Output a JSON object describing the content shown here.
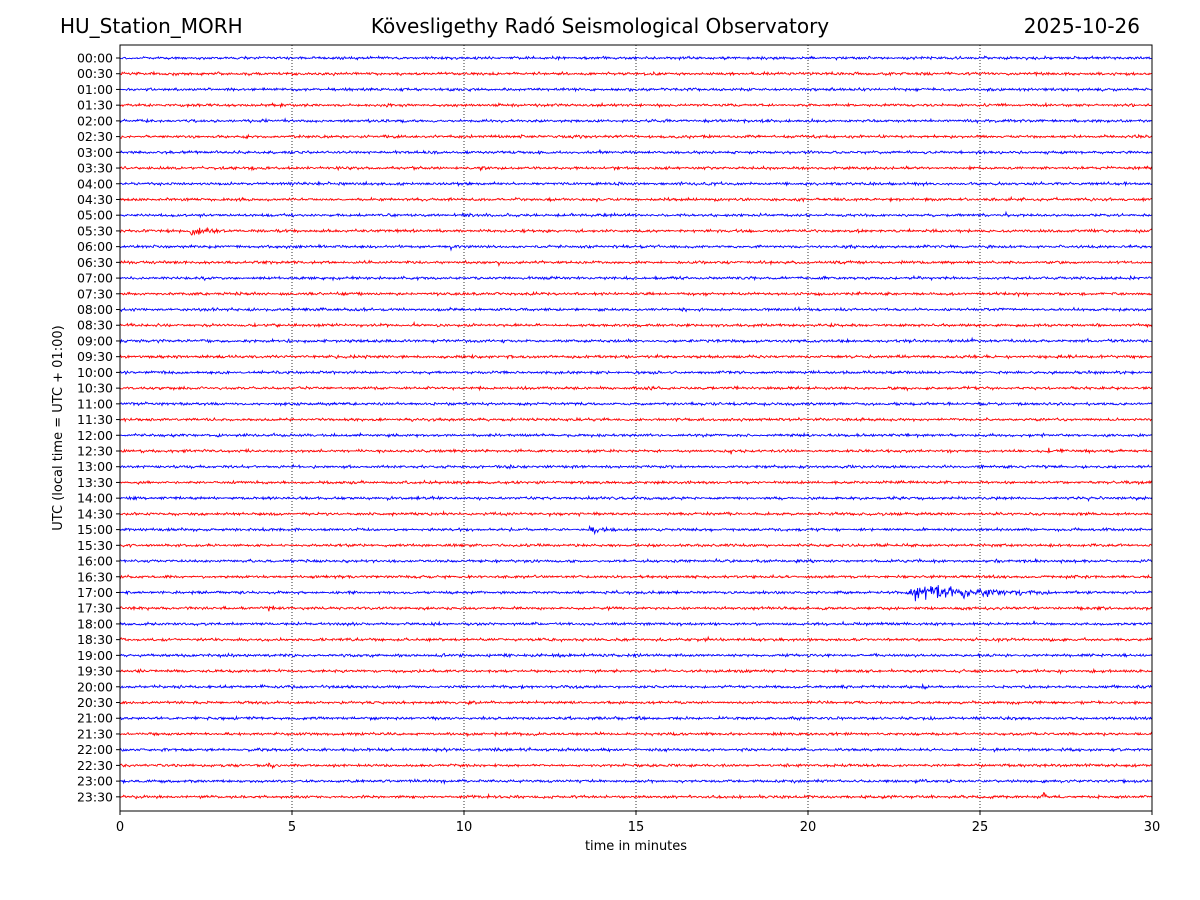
{
  "header": {
    "station": "HU_Station_MORH",
    "observatory": "Kövesligethy Radó Seismological Observatory",
    "date": "2025-10-26"
  },
  "chart_data": {
    "type": "line",
    "title": "Kövesligethy Radó Seismological Observatory",
    "xlabel": "time in minutes",
    "ylabel": "UTC (local time = UTC + 01:00)",
    "xlim": [
      0,
      30
    ],
    "x_ticks": [
      0,
      5,
      10,
      15,
      20,
      25,
      30
    ],
    "x_tick_labels": [
      "0",
      "5",
      "10",
      "15",
      "20",
      "25",
      "30"
    ],
    "grid": "vertical dotted lines at x ticks",
    "colors": {
      "even_rows": "#0000ff",
      "odd_rows": "#ff0000"
    },
    "rows": [
      "00:00",
      "00:30",
      "01:00",
      "01:30",
      "02:00",
      "02:30",
      "03:00",
      "03:30",
      "04:00",
      "04:30",
      "05:00",
      "05:30",
      "06:00",
      "06:30",
      "07:00",
      "07:30",
      "08:00",
      "08:30",
      "09:00",
      "09:30",
      "10:00",
      "10:30",
      "11:00",
      "11:30",
      "12:00",
      "12:30",
      "13:00",
      "13:30",
      "14:00",
      "14:30",
      "15:00",
      "15:30",
      "16:00",
      "16:30",
      "17:00",
      "17:30",
      "18:00",
      "18:30",
      "19:00",
      "19:30",
      "20:00",
      "20:30",
      "21:00",
      "21:30",
      "22:00",
      "22:30",
      "23:00",
      "23:30"
    ],
    "noise_amplitude": 1.0,
    "events": [
      {
        "row": "05:30",
        "minute": 2.0,
        "duration_min": 1.2,
        "amplitude": 3.5
      },
      {
        "row": "15:00",
        "minute": 13.6,
        "duration_min": 0.8,
        "amplitude": 6.0
      },
      {
        "row": "17:00",
        "minute": 22.8,
        "duration_min": 4.5,
        "amplitude": 7.0
      },
      {
        "row": "17:30",
        "minute": 4.3,
        "duration_min": 0.3,
        "amplitude": 3.0
      },
      {
        "row": "22:30",
        "minute": 4.3,
        "duration_min": 0.2,
        "amplitude": 3.0
      },
      {
        "row": "23:30",
        "minute": 26.8,
        "duration_min": 0.2,
        "amplitude": 3.0
      },
      {
        "row": "20:00",
        "minute": 23.3,
        "duration_min": 0.2,
        "amplitude": 2.5
      }
    ]
  }
}
